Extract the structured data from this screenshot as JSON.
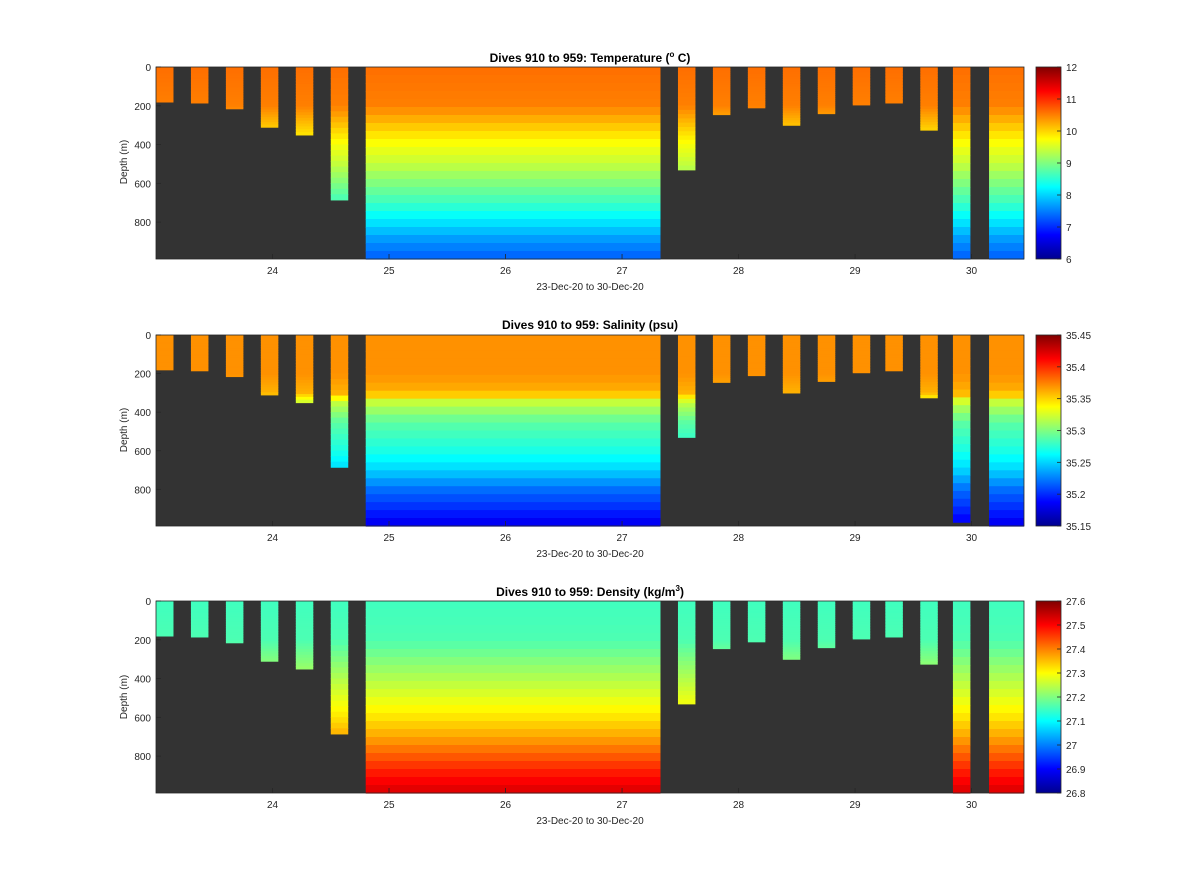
{
  "figure": {
    "panels": [
      {
        "title": "Dives 910 to 959: Temperature (",
        "title_sup": "o",
        "title_tail": " C)",
        "xlabel": "23-Dec-20 to 30-Dec-20",
        "ylabel": "Depth (m)",
        "colorbar_ticks": [
          "12",
          "11",
          "10",
          "9",
          "8",
          "7",
          "6"
        ]
      },
      {
        "title": "Dives 910 to 959: Salinity (psu)",
        "title_sup": "",
        "title_tail": "",
        "xlabel": "23-Dec-20 to 30-Dec-20",
        "ylabel": "Depth (m)",
        "colorbar_ticks": [
          "35.45",
          "35.4",
          "35.35",
          "35.3",
          "35.25",
          "35.2",
          "35.15"
        ]
      },
      {
        "title": "Dives 910 to 959: Density (kg/m",
        "title_sup": "3",
        "title_tail": ")",
        "xlabel": "23-Dec-20 to 30-Dec-20",
        "ylabel": "Depth (m)",
        "colorbar_ticks": [
          "27.6",
          "27.5",
          "27.4",
          "27.3",
          "27.2",
          "27.1",
          "27",
          "26.9",
          "26.8"
        ]
      }
    ]
  },
  "chart_data": [
    {
      "type": "heatmap",
      "title": "Dives 910 to 959: Temperature (o C)",
      "xlabel": "23-Dec-20 to 30-Dec-20",
      "ylabel": "Depth (m)",
      "x_tick_labels": [
        "24",
        "25",
        "26",
        "27",
        "28",
        "29",
        "30"
      ],
      "y_tick_labels": [
        "0",
        "200",
        "400",
        "600",
        "800"
      ],
      "xlim_days": [
        23.0,
        30.45
      ],
      "ylim_depth_m": [
        990,
        0
      ],
      "y_reversed": true,
      "background_color": "#333333",
      "colormap": "jet",
      "clim": [
        6,
        12
      ],
      "colorbar_ticks": [
        6,
        7,
        8,
        9,
        10,
        11,
        12
      ],
      "profiles": [
        {
          "start": 23.0,
          "end": 23.15,
          "max_depth": 180
        },
        {
          "start": 23.3,
          "end": 23.45,
          "max_depth": 185
        },
        {
          "start": 23.6,
          "end": 23.75,
          "max_depth": 215
        },
        {
          "start": 23.9,
          "end": 24.05,
          "max_depth": 310
        },
        {
          "start": 24.2,
          "end": 24.35,
          "max_depth": 350
        },
        {
          "start": 24.5,
          "end": 24.65,
          "max_depth": 685
        },
        {
          "start": 24.8,
          "end": 27.33,
          "max_depth": 990
        },
        {
          "start": 27.48,
          "end": 27.63,
          "max_depth": 530
        },
        {
          "start": 27.78,
          "end": 27.93,
          "max_depth": 245
        },
        {
          "start": 28.08,
          "end": 28.23,
          "max_depth": 210
        },
        {
          "start": 28.38,
          "end": 28.53,
          "max_depth": 300
        },
        {
          "start": 28.68,
          "end": 28.83,
          "max_depth": 240
        },
        {
          "start": 28.98,
          "end": 29.13,
          "max_depth": 195
        },
        {
          "start": 29.26,
          "end": 29.41,
          "max_depth": 185
        },
        {
          "start": 29.56,
          "end": 29.71,
          "max_depth": 325
        },
        {
          "start": 29.84,
          "end": 29.99,
          "max_depth": 990
        },
        {
          "start": 30.15,
          "end": 30.45,
          "max_depth": 990
        }
      ],
      "profile_values": {
        "depth_m": [
          0,
          200,
          300,
          400,
          500,
          600,
          700,
          800,
          900,
          990
        ],
        "values": [
          10.6,
          10.5,
          10.1,
          9.7,
          9.4,
          9.0,
          8.6,
          8.1,
          7.6,
          7.3
        ]
      }
    },
    {
      "type": "heatmap",
      "title": "Dives 910 to 959: Salinity (psu)",
      "xlabel": "23-Dec-20 to 30-Dec-20",
      "ylabel": "Depth (m)",
      "x_tick_labels": [
        "24",
        "25",
        "26",
        "27",
        "28",
        "29",
        "30"
      ],
      "y_tick_labels": [
        "0",
        "200",
        "400",
        "600",
        "800"
      ],
      "xlim_days": [
        23.0,
        30.45
      ],
      "ylim_depth_m": [
        990,
        0
      ],
      "y_reversed": true,
      "background_color": "#333333",
      "colormap": "jet",
      "clim": [
        35.15,
        35.45
      ],
      "colorbar_ticks": [
        35.15,
        35.2,
        35.25,
        35.3,
        35.35,
        35.4,
        35.45
      ],
      "profiles": [
        {
          "start": 23.0,
          "end": 23.15,
          "max_depth": 180
        },
        {
          "start": 23.3,
          "end": 23.45,
          "max_depth": 185
        },
        {
          "start": 23.6,
          "end": 23.75,
          "max_depth": 215
        },
        {
          "start": 23.9,
          "end": 24.05,
          "max_depth": 310
        },
        {
          "start": 24.2,
          "end": 24.35,
          "max_depth": 350
        },
        {
          "start": 24.5,
          "end": 24.65,
          "max_depth": 685
        },
        {
          "start": 24.8,
          "end": 27.33,
          "max_depth": 990
        },
        {
          "start": 27.48,
          "end": 27.63,
          "max_depth": 530
        },
        {
          "start": 27.78,
          "end": 27.93,
          "max_depth": 245
        },
        {
          "start": 28.08,
          "end": 28.23,
          "max_depth": 210
        },
        {
          "start": 28.38,
          "end": 28.53,
          "max_depth": 300
        },
        {
          "start": 28.68,
          "end": 28.83,
          "max_depth": 240
        },
        {
          "start": 28.98,
          "end": 29.13,
          "max_depth": 195
        },
        {
          "start": 29.26,
          "end": 29.41,
          "max_depth": 185
        },
        {
          "start": 29.56,
          "end": 29.71,
          "max_depth": 325
        },
        {
          "start": 29.84,
          "end": 29.99,
          "max_depth": 970
        },
        {
          "start": 30.15,
          "end": 30.45,
          "max_depth": 990
        }
      ],
      "profile_values": {
        "depth_m": [
          0,
          200,
          300,
          350,
          450,
          600,
          700,
          800,
          900,
          990
        ],
        "values": [
          35.37,
          35.37,
          35.36,
          35.32,
          35.29,
          35.27,
          35.25,
          35.22,
          35.2,
          35.18
        ]
      }
    },
    {
      "type": "heatmap",
      "title": "Dives 910 to 959: Density (kg/m3)",
      "xlabel": "23-Dec-20 to 30-Dec-20",
      "ylabel": "Depth (m)",
      "x_tick_labels": [
        "24",
        "25",
        "26",
        "27",
        "28",
        "29",
        "30"
      ],
      "y_tick_labels": [
        "0",
        "200",
        "400",
        "600",
        "800"
      ],
      "xlim_days": [
        23.0,
        30.45
      ],
      "ylim_depth_m": [
        990,
        0
      ],
      "y_reversed": true,
      "background_color": "#333333",
      "colormap": "jet",
      "clim": [
        26.8,
        27.6
      ],
      "colorbar_ticks": [
        26.8,
        26.9,
        27.0,
        27.1,
        27.2,
        27.3,
        27.4,
        27.5,
        27.6
      ],
      "profiles": [
        {
          "start": 23.0,
          "end": 23.15,
          "max_depth": 180
        },
        {
          "start": 23.3,
          "end": 23.45,
          "max_depth": 185
        },
        {
          "start": 23.6,
          "end": 23.75,
          "max_depth": 215
        },
        {
          "start": 23.9,
          "end": 24.05,
          "max_depth": 310
        },
        {
          "start": 24.2,
          "end": 24.35,
          "max_depth": 350
        },
        {
          "start": 24.5,
          "end": 24.65,
          "max_depth": 685
        },
        {
          "start": 24.8,
          "end": 27.33,
          "max_depth": 990
        },
        {
          "start": 27.48,
          "end": 27.63,
          "max_depth": 530
        },
        {
          "start": 27.78,
          "end": 27.93,
          "max_depth": 245
        },
        {
          "start": 28.08,
          "end": 28.23,
          "max_depth": 210
        },
        {
          "start": 28.38,
          "end": 28.53,
          "max_depth": 300
        },
        {
          "start": 28.68,
          "end": 28.83,
          "max_depth": 240
        },
        {
          "start": 28.98,
          "end": 29.13,
          "max_depth": 195
        },
        {
          "start": 29.26,
          "end": 29.41,
          "max_depth": 185
        },
        {
          "start": 29.56,
          "end": 29.71,
          "max_depth": 325
        },
        {
          "start": 29.84,
          "end": 29.99,
          "max_depth": 990
        },
        {
          "start": 30.15,
          "end": 30.45,
          "max_depth": 990
        }
      ],
      "profile_values": {
        "depth_m": [
          0,
          200,
          300,
          400,
          500,
          600,
          700,
          800,
          900,
          990
        ],
        "values": [
          27.15,
          27.16,
          27.2,
          27.24,
          27.28,
          27.32,
          27.37,
          27.43,
          27.49,
          27.53
        ]
      }
    }
  ]
}
